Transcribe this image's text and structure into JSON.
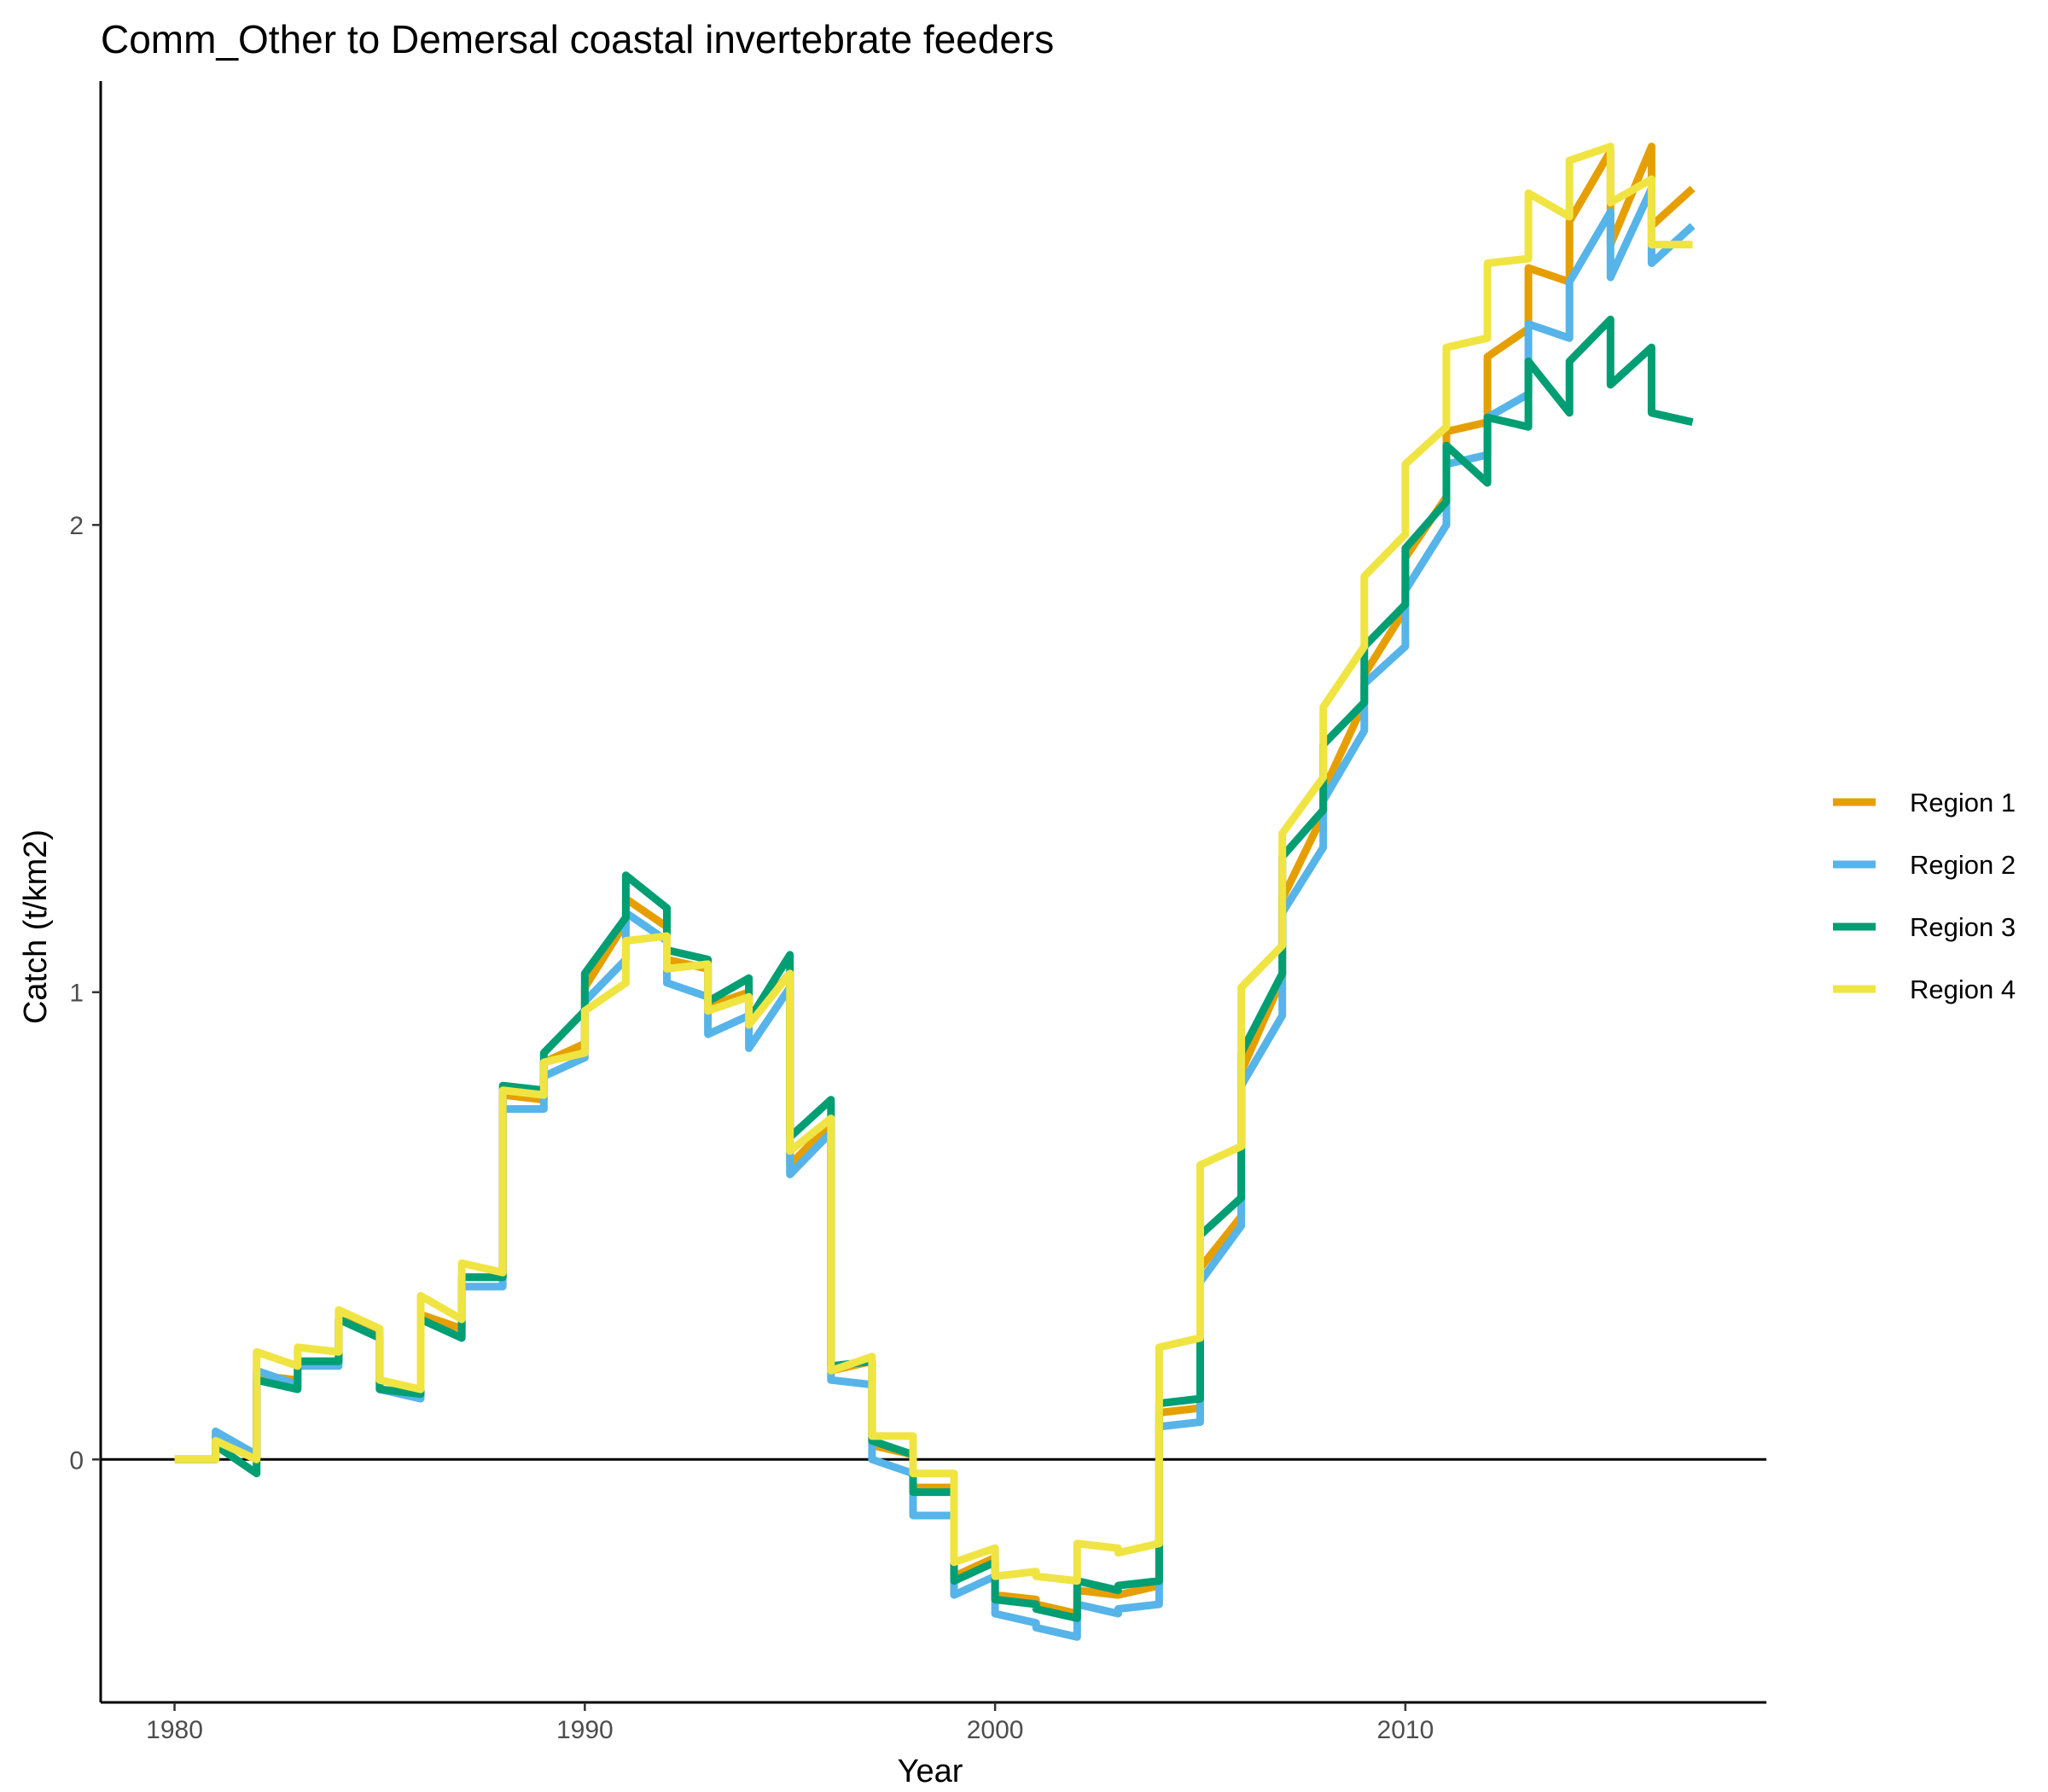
{
  "chart_data": {
    "type": "line",
    "title": "Comm_Other to Demersal coastal invertebrate feeders",
    "xlabel": "Year",
    "ylabel": "Catch (t/km2)",
    "xlim": [
      1978.2,
      2018.8
    ],
    "ylim": [
      -0.52,
      2.95
    ],
    "x_ticks": [
      1980,
      1990,
      2000,
      2010
    ],
    "y_ticks": [
      0,
      1,
      2
    ],
    "grid": false,
    "zero_line": true,
    "legend_position": "right",
    "series": [
      {
        "name": "Region 1",
        "color": "#E69F00",
        "x": [
          1980,
          1981,
          1981,
          1982,
          1982,
          1983,
          1983,
          1984,
          1984,
          1985,
          1985,
          1986,
          1986,
          1987,
          1987,
          1988,
          1988,
          1989,
          1989,
          1990,
          1990,
          1991,
          1991,
          1992,
          1992,
          1993,
          1993,
          1994,
          1994,
          1995,
          1995,
          1996,
          1996,
          1997,
          1997,
          1998,
          1998,
          1999,
          1999,
          2000,
          2000,
          2001,
          2001,
          2002,
          2002,
          2003,
          2003,
          2004,
          2004,
          2005,
          2005,
          2006,
          2006,
          2007,
          2007,
          2008,
          2008,
          2009,
          2009,
          2010,
          2010,
          2011,
          2011,
          2012,
          2012,
          2013,
          2013,
          2014,
          2014,
          2015,
          2015,
          2016,
          2016,
          2017
        ],
        "y": [
          0.0,
          0.0,
          0.04,
          0.0,
          0.18,
          0.17,
          0.21,
          0.21,
          0.3,
          0.27,
          0.15,
          0.14,
          0.31,
          0.28,
          0.39,
          0.39,
          0.78,
          0.77,
          0.85,
          0.89,
          1.01,
          1.15,
          1.2,
          1.14,
          1.07,
          1.05,
          0.97,
          1.0,
          0.94,
          1.04,
          0.63,
          0.72,
          0.19,
          0.21,
          0.03,
          0.01,
          -0.06,
          -0.06,
          -0.25,
          -0.21,
          -0.29,
          -0.3,
          -0.31,
          -0.33,
          -0.28,
          -0.29,
          -0.29,
          -0.27,
          0.1,
          0.11,
          0.41,
          0.52,
          0.83,
          1.03,
          1.2,
          1.38,
          1.43,
          1.62,
          1.68,
          1.82,
          1.93,
          2.06,
          2.2,
          2.22,
          2.36,
          2.42,
          2.55,
          2.52,
          2.65,
          2.8,
          2.6,
          2.81,
          2.64,
          2.72
        ]
      },
      {
        "name": "Region 2",
        "color": "#56B4E9",
        "x": [
          1980,
          1981,
          1981,
          1982,
          1982,
          1983,
          1983,
          1984,
          1984,
          1985,
          1985,
          1986,
          1986,
          1987,
          1987,
          1988,
          1988,
          1989,
          1989,
          1990,
          1990,
          1991,
          1991,
          1992,
          1992,
          1993,
          1993,
          1994,
          1994,
          1995,
          1995,
          1996,
          1996,
          1997,
          1997,
          1998,
          1998,
          1999,
          1999,
          2000,
          2000,
          2001,
          2001,
          2002,
          2002,
          2003,
          2003,
          2004,
          2004,
          2005,
          2005,
          2006,
          2006,
          2007,
          2007,
          2008,
          2008,
          2009,
          2009,
          2010,
          2010,
          2011,
          2011,
          2012,
          2012,
          2013,
          2013,
          2014,
          2014,
          2015,
          2015,
          2016,
          2016,
          2017
        ],
        "y": [
          0.0,
          0.0,
          0.06,
          0.01,
          0.19,
          0.16,
          0.2,
          0.2,
          0.3,
          0.26,
          0.15,
          0.13,
          0.3,
          0.26,
          0.37,
          0.37,
          0.75,
          0.75,
          0.82,
          0.86,
          0.98,
          1.07,
          1.17,
          1.11,
          1.02,
          0.99,
          0.91,
          0.95,
          0.88,
          1.01,
          0.61,
          0.7,
          0.17,
          0.16,
          0.0,
          -0.03,
          -0.12,
          -0.12,
          -0.29,
          -0.25,
          -0.33,
          -0.35,
          -0.36,
          -0.38,
          -0.31,
          -0.33,
          -0.32,
          -0.31,
          0.07,
          0.08,
          0.38,
          0.5,
          0.8,
          0.95,
          1.17,
          1.31,
          1.41,
          1.56,
          1.66,
          1.74,
          1.86,
          2.0,
          2.13,
          2.15,
          2.23,
          2.28,
          2.43,
          2.4,
          2.52,
          2.67,
          2.53,
          2.72,
          2.56,
          2.64
        ]
      },
      {
        "name": "Region 3",
        "color": "#009E73",
        "x": [
          1980,
          1981,
          1981,
          1982,
          1982,
          1983,
          1983,
          1984,
          1984,
          1985,
          1985,
          1986,
          1986,
          1987,
          1987,
          1988,
          1988,
          1989,
          1989,
          1990,
          1990,
          1991,
          1991,
          1992,
          1992,
          1993,
          1993,
          1994,
          1994,
          1995,
          1995,
          1996,
          1996,
          1997,
          1997,
          1998,
          1998,
          1999,
          1999,
          2000,
          2000,
          2001,
          2001,
          2002,
          2002,
          2003,
          2003,
          2004,
          2004,
          2005,
          2005,
          2006,
          2006,
          2007,
          2007,
          2008,
          2008,
          2009,
          2009,
          2010,
          2010,
          2011,
          2011,
          2012,
          2012,
          2013,
          2013,
          2014,
          2014,
          2015,
          2015,
          2016,
          2016,
          2017
        ],
        "y": [
          0.0,
          0.0,
          0.03,
          -0.03,
          0.17,
          0.15,
          0.21,
          0.21,
          0.3,
          0.26,
          0.15,
          0.14,
          0.3,
          0.26,
          0.39,
          0.39,
          0.8,
          0.79,
          0.87,
          0.96,
          1.04,
          1.16,
          1.25,
          1.18,
          1.09,
          1.07,
          0.98,
          1.03,
          0.94,
          1.08,
          0.69,
          0.77,
          0.2,
          0.21,
          0.04,
          0.01,
          -0.07,
          -0.07,
          -0.26,
          -0.22,
          -0.3,
          -0.31,
          -0.32,
          -0.34,
          -0.26,
          -0.28,
          -0.27,
          -0.26,
          0.12,
          0.13,
          0.48,
          0.56,
          0.87,
          1.04,
          1.29,
          1.39,
          1.53,
          1.62,
          1.74,
          1.83,
          1.95,
          2.05,
          2.17,
          2.09,
          2.23,
          2.21,
          2.35,
          2.24,
          2.35,
          2.44,
          2.3,
          2.38,
          2.24,
          2.22
        ]
      },
      {
        "name": "Region 4",
        "color": "#F0E442",
        "x": [
          1980,
          1981,
          1981,
          1982,
          1982,
          1983,
          1983,
          1984,
          1984,
          1985,
          1985,
          1986,
          1986,
          1987,
          1987,
          1988,
          1988,
          1989,
          1989,
          1990,
          1990,
          1991,
          1991,
          1992,
          1992,
          1993,
          1993,
          1994,
          1994,
          1995,
          1995,
          1996,
          1996,
          1997,
          1997,
          1998,
          1998,
          1999,
          1999,
          2000,
          2000,
          2001,
          2001,
          2002,
          2002,
          2003,
          2003,
          2004,
          2004,
          2005,
          2005,
          2006,
          2006,
          2007,
          2007,
          2008,
          2008,
          2009,
          2009,
          2010,
          2010,
          2011,
          2011,
          2012,
          2012,
          2013,
          2013,
          2014,
          2014,
          2015,
          2015,
          2016,
          2016,
          2017
        ],
        "y": [
          0.0,
          0.0,
          0.04,
          0.0,
          0.23,
          0.2,
          0.24,
          0.23,
          0.32,
          0.28,
          0.17,
          0.15,
          0.35,
          0.3,
          0.42,
          0.4,
          0.79,
          0.78,
          0.85,
          0.87,
          0.96,
          1.02,
          1.11,
          1.12,
          1.05,
          1.06,
          0.96,
          0.99,
          0.93,
          1.04,
          0.66,
          0.73,
          0.19,
          0.22,
          0.05,
          0.05,
          -0.03,
          -0.03,
          -0.22,
          -0.19,
          -0.25,
          -0.24,
          -0.25,
          -0.26,
          -0.18,
          -0.19,
          -0.2,
          -0.18,
          0.24,
          0.26,
          0.63,
          0.67,
          1.01,
          1.1,
          1.34,
          1.46,
          1.61,
          1.74,
          1.89,
          1.98,
          2.13,
          2.21,
          2.38,
          2.4,
          2.56,
          2.57,
          2.71,
          2.66,
          2.78,
          2.81,
          2.69,
          2.74,
          2.6,
          2.6
        ]
      }
    ]
  }
}
